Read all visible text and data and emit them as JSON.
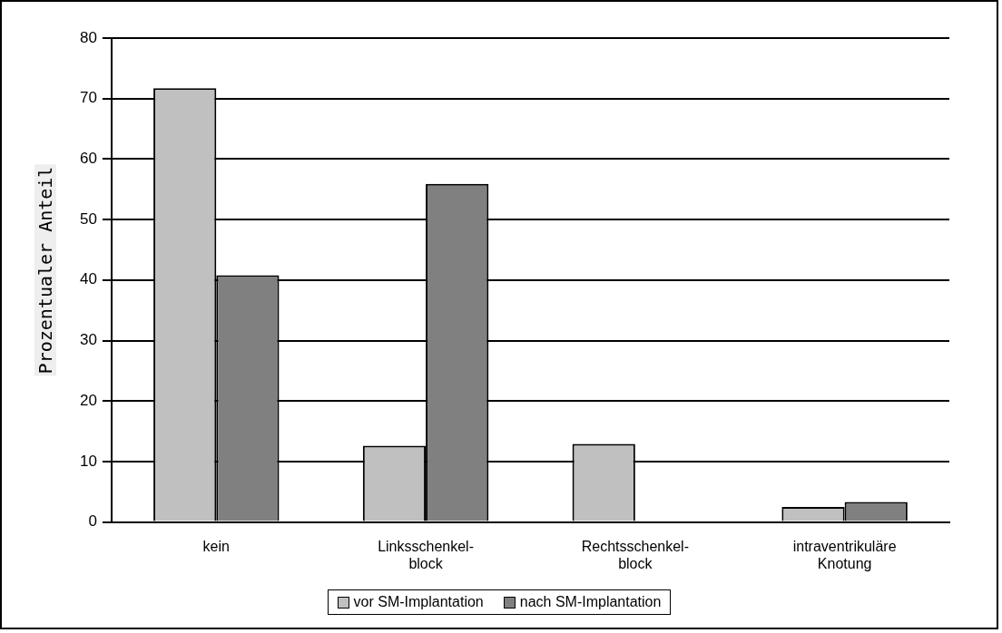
{
  "chart_data": {
    "type": "bar",
    "ylabel": "Prozentualer Anteil",
    "categories": [
      "kein",
      "Linksschenkel-\nblock",
      "Rechtsschenkel-\nblock",
      "intraventrikuläre\nKnotung"
    ],
    "series": [
      {
        "name": "vor SM-Implantation",
        "color": "#c0c0c0",
        "values": [
          71.7,
          12.6,
          12.9,
          2.5
        ]
      },
      {
        "name": "nach SM-Implantation",
        "color": "#808080",
        "values": [
          40.8,
          55.9,
          0,
          3.3
        ]
      }
    ],
    "ylim": [
      0,
      80
    ],
    "yticks": [
      0,
      10,
      20,
      30,
      40,
      50,
      60,
      70,
      80
    ],
    "grid": "y",
    "legend": "bottom"
  }
}
